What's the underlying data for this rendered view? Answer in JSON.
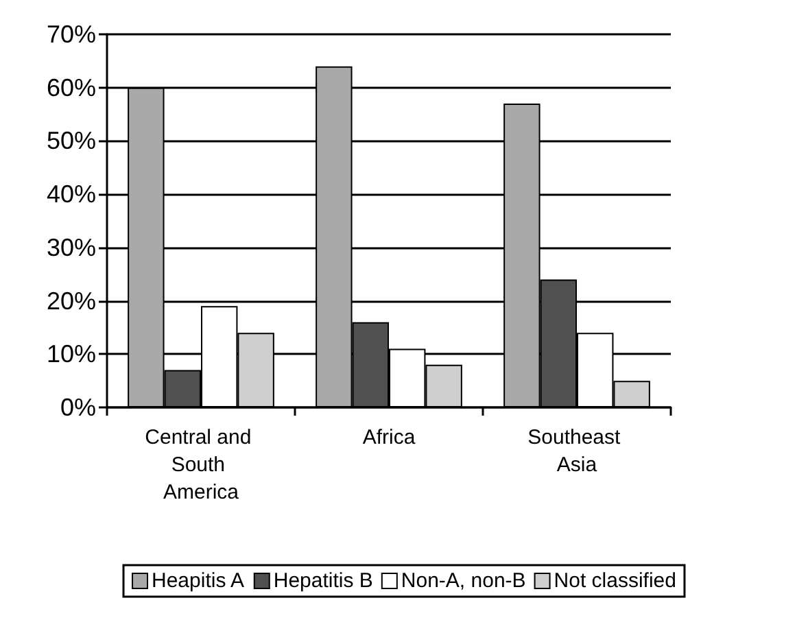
{
  "chart_data": {
    "type": "bar",
    "categories": [
      "Central and South America",
      "Africa",
      "Southeast Asia"
    ],
    "series": [
      {
        "name": "Heapitis A",
        "color": "#a9a9a9",
        "values": [
          60,
          64,
          57
        ]
      },
      {
        "name": "Hepatitis B",
        "color": "#505050",
        "values": [
          7,
          16,
          24
        ]
      },
      {
        "name": "Non-A, non-B",
        "color": "#ffffff",
        "values": [
          19,
          11,
          14
        ]
      },
      {
        "name": "Not classified",
        "color": "#cfcfcf",
        "values": [
          14,
          8,
          5
        ]
      }
    ],
    "ylim": [
      0,
      70
    ],
    "yticks": [
      {
        "value": 0,
        "label": "0%"
      },
      {
        "value": 10,
        "label": "10%"
      },
      {
        "value": 20,
        "label": "20%"
      },
      {
        "value": 30,
        "label": "30%"
      },
      {
        "value": 40,
        "label": "40%"
      },
      {
        "value": 50,
        "label": "50%"
      },
      {
        "value": 60,
        "label": "60%"
      },
      {
        "value": 70,
        "label": "70%"
      }
    ],
    "grid": "y",
    "legend": "bottom"
  }
}
